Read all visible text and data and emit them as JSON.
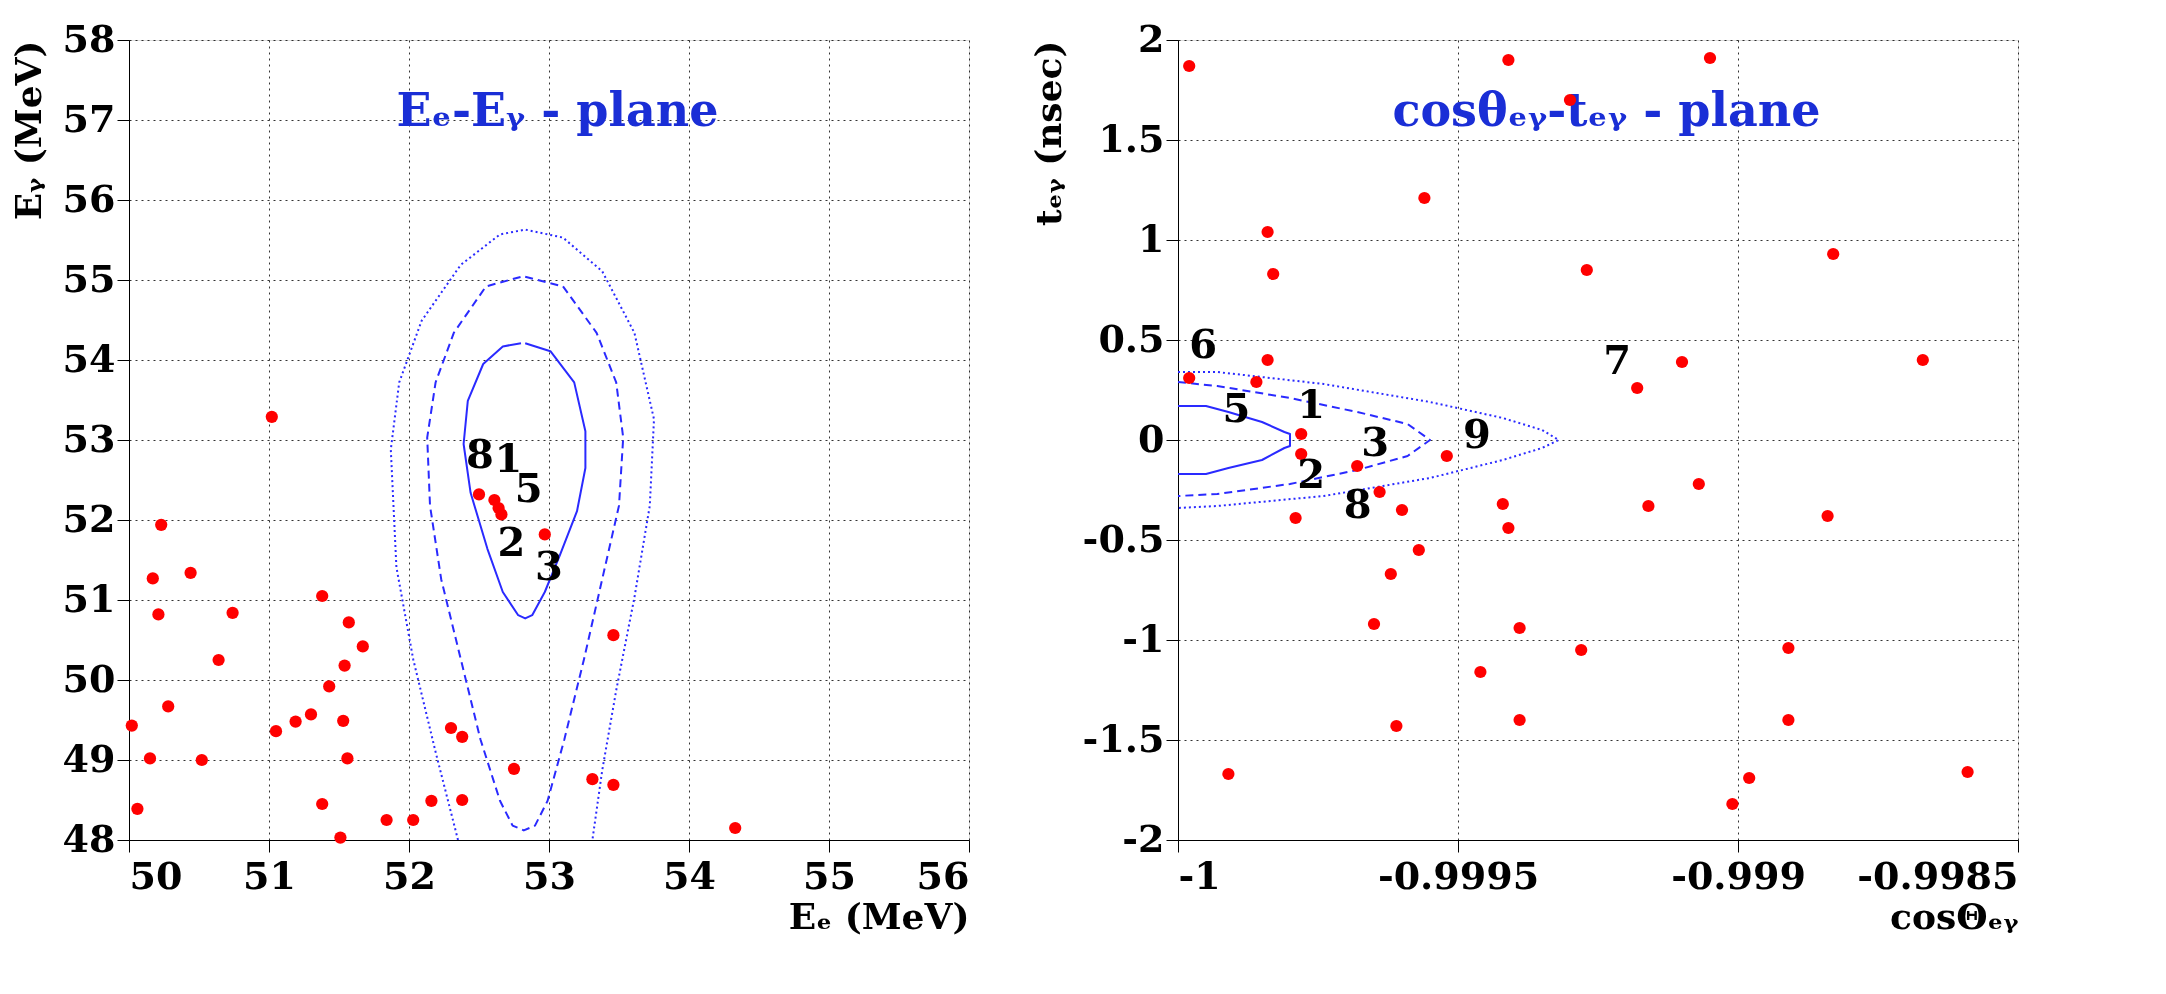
{
  "chart_data": [
    {
      "type": "scatter",
      "title": "Eₑ-Eᵧ - plane",
      "xlabel": "Eₑ (MeV)",
      "ylabel": "Eᵧ (MeV)",
      "xlim": [
        50,
        56
      ],
      "ylim": [
        48,
        58
      ],
      "xticks": [
        50,
        51,
        52,
        53,
        54,
        55,
        56
      ],
      "yticks": [
        48,
        49,
        50,
        51,
        52,
        53,
        54,
        55,
        56,
        57,
        58
      ],
      "grid": true,
      "series": [
        {
          "marker": "circle",
          "color": "#ff0000",
          "x": [
            51.02,
            50.23,
            50.17,
            50.44,
            50.21,
            50.74,
            50.64,
            50.28,
            50.02,
            50.15,
            50.52,
            50.06,
            51.38,
            51.57,
            51.67,
            51.54,
            51.43,
            51.3,
            51.19,
            51.05,
            51.53,
            51.56,
            51.38,
            51.51,
            51.84,
            52.03,
            52.16,
            52.38,
            52.3,
            52.38,
            52.75,
            53.31,
            53.46,
            53.46,
            54.33,
            52.5,
            52.61,
            52.64,
            52.66,
            52.97
          ],
          "values": [
            53.29,
            51.94,
            51.27,
            51.34,
            50.82,
            50.84,
            50.25,
            49.67,
            49.43,
            49.02,
            49.0,
            48.39,
            51.05,
            50.72,
            50.42,
            50.18,
            49.92,
            49.57,
            49.48,
            49.36,
            49.49,
            49.02,
            48.45,
            48.03,
            48.25,
            48.25,
            48.49,
            48.5,
            49.4,
            49.29,
            48.89,
            48.76,
            48.69,
            50.56,
            48.15,
            52.32,
            52.25,
            52.15,
            52.07,
            51.82
          ]
        },
        {
          "type": "line",
          "line_style": "dotted",
          "color": "#2a2aff",
          "x": [
            52.35,
            52.19,
            52.03,
            51.91,
            51.87,
            51.93,
            52.09,
            52.37,
            52.65,
            52.83,
            53.1,
            53.38,
            53.61,
            53.75,
            53.72,
            53.61,
            53.48,
            53.38,
            53.31
          ],
          "values": [
            48.0,
            49.1,
            50.26,
            51.41,
            52.88,
            53.72,
            54.49,
            55.19,
            55.57,
            55.63,
            55.53,
            55.11,
            54.34,
            53.26,
            52.18,
            51.03,
            49.87,
            48.87,
            48.0
          ]
        },
        {
          "type": "line",
          "line_style": "dashed",
          "color": "#2a2aff",
          "x": [
            52.83,
            53.1,
            53.34,
            53.48,
            53.53,
            53.5,
            53.38,
            53.25,
            53.11,
            52.99,
            52.9,
            52.82,
            52.74,
            52.65,
            52.51,
            52.37,
            52.23,
            52.15,
            52.13,
            52.19,
            52.32,
            52.55,
            52.8
          ],
          "values": [
            55.04,
            54.92,
            54.34,
            53.72,
            53.03,
            52.18,
            51.26,
            50.26,
            49.26,
            48.49,
            48.18,
            48.12,
            48.18,
            48.49,
            49.26,
            50.26,
            51.26,
            52.18,
            53.03,
            53.72,
            54.34,
            54.92,
            55.04
          ]
        },
        {
          "type": "line",
          "line_style": "solid",
          "color": "#2a2aff",
          "x": [
            52.83,
            53.01,
            53.18,
            53.26,
            53.26,
            53.2,
            53.08,
            52.97,
            52.88,
            52.83,
            52.78,
            52.67,
            52.56,
            52.44,
            52.39,
            52.42,
            52.53,
            52.67,
            52.8
          ],
          "values": [
            54.21,
            54.11,
            53.72,
            53.11,
            52.65,
            52.11,
            51.57,
            51.1,
            50.81,
            50.77,
            50.81,
            51.1,
            51.64,
            52.34,
            52.95,
            53.49,
            53.95,
            54.17,
            54.21
          ]
        }
      ],
      "annotations": [
        {
          "text": "8",
          "x": 52.5,
          "y": 52.32
        },
        {
          "text": "1",
          "x": 52.61,
          "y": 52.25
        },
        {
          "text": "5",
          "x": 52.64,
          "y": 52.15
        },
        {
          "text": "2",
          "x": 52.66,
          "y": 52.07
        },
        {
          "text": "3",
          "x": 52.97,
          "y": 51.82
        }
      ]
    },
    {
      "type": "scatter",
      "title": "cosθₑᵧ-tₑᵧ - plane",
      "xlabel": "cosΘₑᵧ",
      "ylabel": "tₑᵧ (nsec)",
      "xlim": [
        -1,
        -0.9985
      ],
      "ylim": [
        -2,
        2
      ],
      "xticks": [
        -1,
        -0.9995,
        -0.999,
        -0.9985
      ],
      "yticks": [
        -2,
        -1.5,
        -1,
        -0.5,
        0,
        0.5,
        1,
        1.5,
        2
      ],
      "grid": true,
      "series": [
        {
          "marker": "circle",
          "color": "#ff0000",
          "x": [
            -0.99998,
            -0.99941,
            -0.9993,
            -0.99905,
            -0.99956,
            -0.99984,
            -0.99983,
            -0.99927,
            -0.99883,
            -0.99984,
            -0.99998,
            -0.99986,
            -0.99918,
            -0.9991,
            -0.99867,
            -0.99978,
            -0.99978,
            -0.99968,
            -0.99952,
            -0.99964,
            -0.9996,
            -0.99979,
            -0.99942,
            -0.99941,
            -0.99916,
            -0.99907,
            -0.99884,
            -0.99957,
            -0.99962,
            -0.99965,
            -0.99939,
            -0.99928,
            -0.99946,
            -0.99891,
            -0.99961,
            -0.99939,
            -0.99891,
            -0.99991,
            -0.99898,
            -0.99901,
            -0.99859
          ],
          "values": [
            1.87,
            1.9,
            1.7,
            1.91,
            1.21,
            1.04,
            0.83,
            0.85,
            0.93,
            0.4,
            0.31,
            0.29,
            0.26,
            0.39,
            0.4,
            0.03,
            -0.07,
            -0.13,
            -0.08,
            -0.26,
            -0.35,
            -0.39,
            -0.32,
            -0.44,
            -0.33,
            -0.22,
            -0.38,
            -0.55,
            -0.67,
            -0.92,
            -0.94,
            -1.05,
            -1.16,
            -1.04,
            -1.43,
            -1.4,
            -1.4,
            -1.67,
            -1.69,
            -1.82,
            -1.66
          ]
        },
        {
          "type": "line",
          "line_style": "solid",
          "color": "#2a2aff",
          "x": [
            -1,
            -0.99995,
            -0.99991,
            -0.99985,
            -0.99981,
            -0.9998,
            -0.9998,
            -0.99981,
            -0.99985,
            -0.99991,
            -0.99995,
            -1
          ],
          "values": [
            0.17,
            0.17,
            0.14,
            0.09,
            0.04,
            0.03,
            -0.03,
            -0.04,
            -0.1,
            -0.14,
            -0.17,
            -0.17
          ]
        },
        {
          "type": "line",
          "line_style": "dashed",
          "color": "#2a2aff",
          "x": [
            -1,
            -0.99993,
            -0.9998,
            -0.99968,
            -0.99959,
            -0.99955,
            -0.99959,
            -0.99968,
            -0.9998,
            -0.99993,
            -1
          ],
          "values": [
            0.29,
            0.27,
            0.21,
            0.14,
            0.08,
            0.0,
            -0.08,
            -0.15,
            -0.22,
            -0.27,
            -0.28
          ]
        },
        {
          "type": "line",
          "line_style": "dotted",
          "color": "#2a2aff",
          "x": [
            -1,
            -0.99993,
            -0.99974,
            -0.99955,
            -0.99942,
            -0.99935,
            -0.99932,
            -0.99935,
            -0.99942,
            -0.99955,
            -0.99974,
            -0.99993,
            -1
          ],
          "values": [
            0.34,
            0.34,
            0.28,
            0.19,
            0.11,
            0.05,
            0.0,
            -0.04,
            -0.1,
            -0.19,
            -0.28,
            -0.33,
            -0.34
          ]
        }
      ],
      "annotations": [
        {
          "text": "6",
          "x": -0.99998,
          "y": 0.31
        },
        {
          "text": "5",
          "x": -0.99986,
          "y": 0.29
        },
        {
          "text": "1",
          "x": -0.99978,
          "y": 0.03
        },
        {
          "text": "3",
          "x": -0.99968,
          "y": -0.13
        },
        {
          "text": "2",
          "x": -0.99978,
          "y": -0.07
        },
        {
          "text": "9",
          "x": -0.99952,
          "y": -0.08
        },
        {
          "text": "8",
          "x": -0.99964,
          "y": -0.26
        },
        {
          "text": "7",
          "x": -0.99918,
          "y": 0.26
        }
      ]
    }
  ]
}
